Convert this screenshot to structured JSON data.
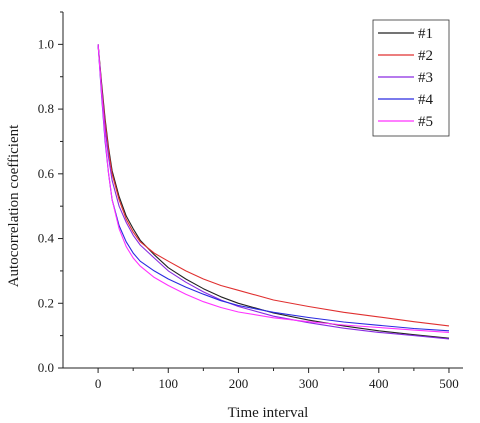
{
  "chart_data": {
    "type": "line",
    "xlabel": "Time interval",
    "ylabel": "Autocorrelation coefficient",
    "xlim": [
      -50,
      520
    ],
    "ylim": [
      0.0,
      1.1
    ],
    "xticks": [
      0,
      100,
      200,
      300,
      400,
      500
    ],
    "xtick_labels": [
      "0",
      "100",
      "200",
      "300",
      "400",
      "500"
    ],
    "yticks": [
      0.0,
      0.2,
      0.4,
      0.6,
      0.8,
      1.0
    ],
    "ytick_labels": [
      "0.0",
      "0.2",
      "0.4",
      "0.6",
      "0.8",
      "1.0"
    ],
    "grid": false,
    "legend": "top-right",
    "x": [
      0,
      5,
      10,
      15,
      20,
      30,
      40,
      50,
      60,
      80,
      100,
      125,
      150,
      175,
      200,
      250,
      300,
      350,
      400,
      450,
      500
    ],
    "series": [
      {
        "name": "#1",
        "color": "#222222",
        "values": [
          1.0,
          0.88,
          0.77,
          0.68,
          0.61,
          0.53,
          0.47,
          0.43,
          0.395,
          0.35,
          0.31,
          0.275,
          0.245,
          0.22,
          0.2,
          0.17,
          0.148,
          0.13,
          0.115,
          0.103,
          0.092
        ]
      },
      {
        "name": "#2",
        "color": "#e03030",
        "values": [
          1.0,
          0.87,
          0.76,
          0.67,
          0.6,
          0.52,
          0.46,
          0.42,
          0.39,
          0.355,
          0.33,
          0.3,
          0.275,
          0.255,
          0.24,
          0.21,
          0.19,
          0.172,
          0.158,
          0.143,
          0.13
        ]
      },
      {
        "name": "#3",
        "color": "#8a2be2",
        "values": [
          1.0,
          0.86,
          0.74,
          0.65,
          0.58,
          0.5,
          0.45,
          0.41,
          0.38,
          0.34,
          0.3,
          0.265,
          0.235,
          0.21,
          0.19,
          0.16,
          0.14,
          0.123,
          0.11,
          0.1,
          0.09
        ]
      },
      {
        "name": "#4",
        "color": "#2a2ae0",
        "values": [
          1.0,
          0.84,
          0.7,
          0.6,
          0.52,
          0.44,
          0.39,
          0.355,
          0.33,
          0.3,
          0.275,
          0.25,
          0.228,
          0.208,
          0.193,
          0.172,
          0.156,
          0.142,
          0.132,
          0.122,
          0.115
        ]
      },
      {
        "name": "#5",
        "color": "#ff33ff",
        "values": [
          1.0,
          0.85,
          0.71,
          0.6,
          0.52,
          0.43,
          0.375,
          0.34,
          0.315,
          0.28,
          0.255,
          0.228,
          0.205,
          0.187,
          0.173,
          0.155,
          0.143,
          0.133,
          0.125,
          0.117,
          0.11
        ]
      }
    ]
  }
}
